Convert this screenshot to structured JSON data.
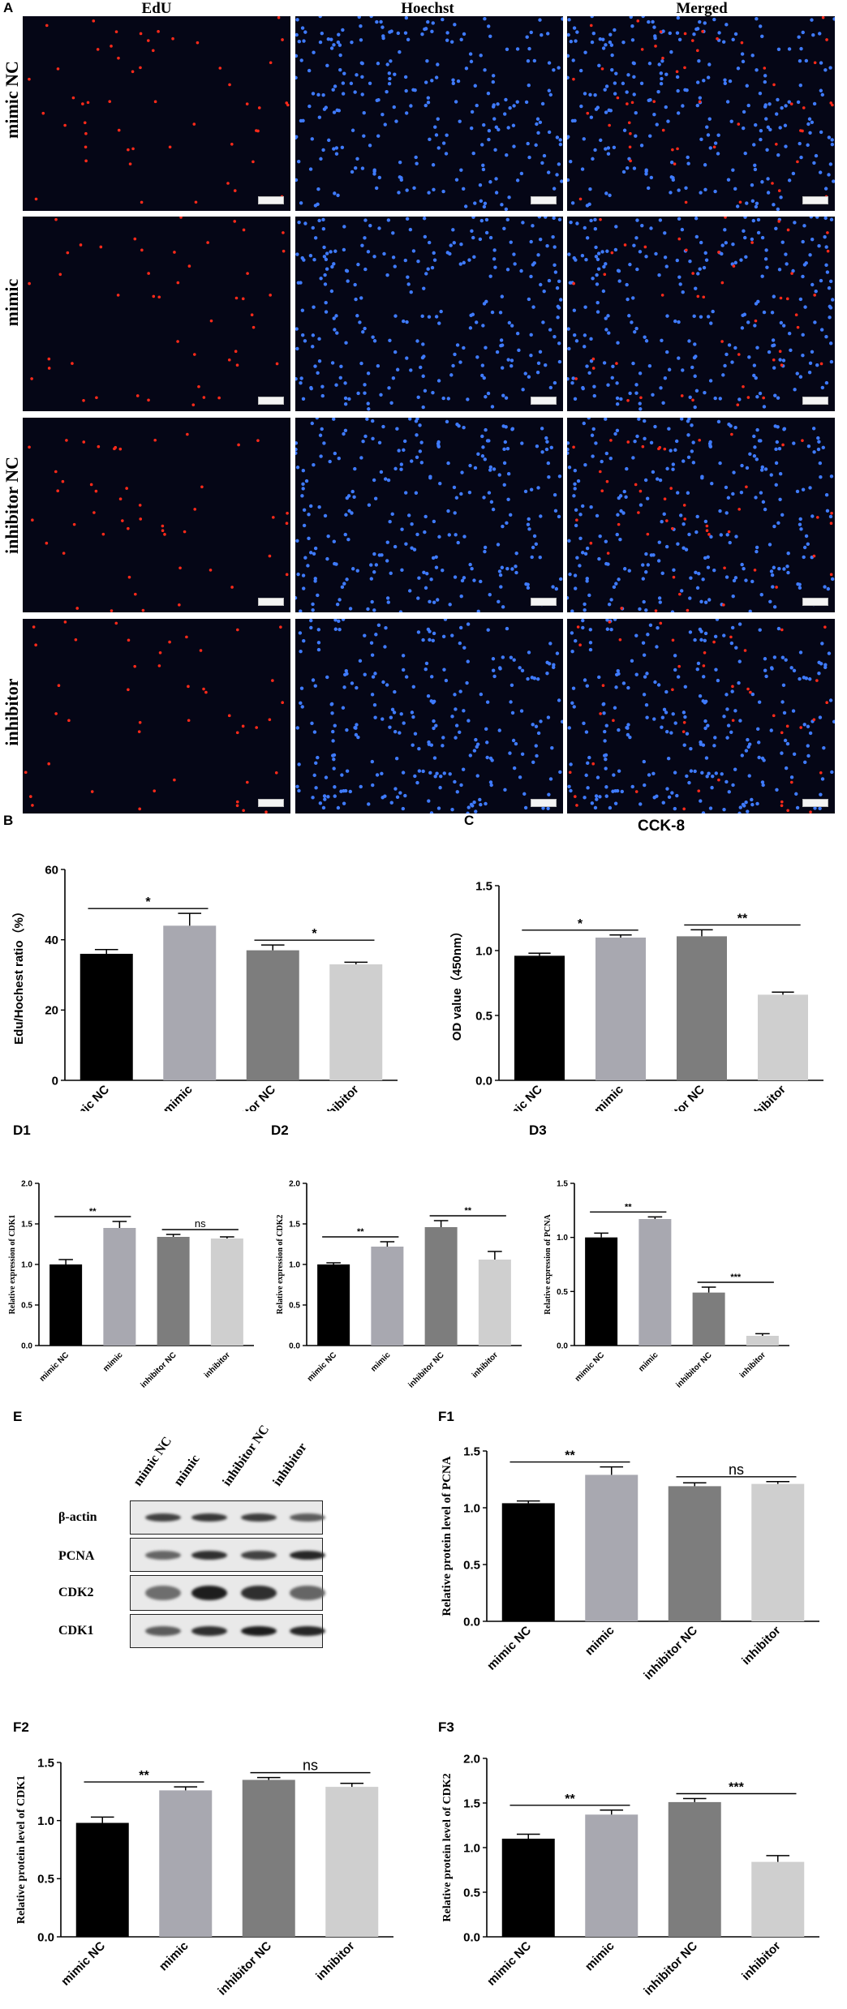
{
  "figure": {
    "panel_labels": {
      "A": "A",
      "B": "B",
      "C": "C",
      "D1": "D1",
      "D2": "D2",
      "D3": "D3",
      "E": "E",
      "F1": "F1",
      "F2": "F2",
      "F3": "F3"
    },
    "A": {
      "columns": [
        "EdU",
        "Hoechst",
        "Merged"
      ],
      "rows": [
        "mimic NC",
        "mimic",
        "inhibitor NC",
        "inhibitor"
      ],
      "colors": {
        "edu": "#ff2a1a",
        "hoechst": "#3f7bff",
        "background": "#050616"
      }
    },
    "E": {
      "lanes": [
        "mimic NC",
        "mimic",
        "inhibitor NC",
        "inhibitor"
      ],
      "rows": [
        "β-actin",
        "PCNA",
        "CDK2",
        "CDK1"
      ]
    }
  },
  "chart_data": [
    {
      "id": "B",
      "type": "bar",
      "title": "",
      "categories": [
        "mimic NC",
        "mimic",
        "inhibitor NC",
        "inhibitor"
      ],
      "values": [
        36,
        44,
        37,
        33
      ],
      "errors": [
        1.2,
        3.5,
        1.5,
        0.6
      ],
      "ylabel": "Edu/Hochest ratio（%）",
      "ylim": [
        0,
        60
      ],
      "yticks": [
        "0",
        "20",
        "40",
        "60"
      ],
      "colors": [
        "#000000",
        "#a8a8b0",
        "#7d7d7d",
        "#cfcfcf"
      ],
      "sig": [
        {
          "from": 0,
          "to": 1,
          "label": "*"
        },
        {
          "from": 2,
          "to": 3,
          "label": "*"
        }
      ]
    },
    {
      "id": "C",
      "type": "bar",
      "title": "CCK-8",
      "categories": [
        "mimic NC",
        "mimic",
        "inhibitor NC",
        "inhibitor"
      ],
      "values": [
        0.96,
        1.1,
        1.11,
        0.66
      ],
      "errors": [
        0.02,
        0.02,
        0.05,
        0.02
      ],
      "ylabel": "OD value（450nm）",
      "ylim": [
        0,
        1.5
      ],
      "yticks": [
        "0.0",
        "0.5",
        "1.0",
        "1.5"
      ],
      "colors": [
        "#000000",
        "#a8a8b0",
        "#7d7d7d",
        "#cfcfcf"
      ],
      "sig": [
        {
          "from": 0,
          "to": 1,
          "label": "*"
        },
        {
          "from": 2,
          "to": 3,
          "label": "**"
        }
      ]
    },
    {
      "id": "D1",
      "type": "bar",
      "title": "",
      "categories": [
        "mimic NC",
        "mimic",
        "inhibitor NC",
        "inhibitor"
      ],
      "values": [
        1.0,
        1.45,
        1.34,
        1.32
      ],
      "errors": [
        0.06,
        0.08,
        0.03,
        0.02
      ],
      "ylabel": "Relative expression of CDK1",
      "ylim": [
        0,
        2.0
      ],
      "yticks": [
        "0.0",
        "0.5",
        "1.0",
        "1.5",
        "2.0"
      ],
      "colors": [
        "#000000",
        "#a8a8b0",
        "#7d7d7d",
        "#cfcfcf"
      ],
      "sig": [
        {
          "from": 0,
          "to": 1,
          "label": "**"
        },
        {
          "from": 2,
          "to": 3,
          "label": "ns"
        }
      ]
    },
    {
      "id": "D2",
      "type": "bar",
      "title": "",
      "categories": [
        "mimic NC",
        "mimic",
        "inhibitor NC",
        "inhibitor"
      ],
      "values": [
        1.0,
        1.22,
        1.46,
        1.06
      ],
      "errors": [
        0.02,
        0.06,
        0.08,
        0.1
      ],
      "ylabel": "Relative expression of CDK2",
      "ylim": [
        0,
        2.0
      ],
      "yticks": [
        "0.0",
        "0.5",
        "1.0",
        "1.5",
        "2.0"
      ],
      "colors": [
        "#000000",
        "#a8a8b0",
        "#7d7d7d",
        "#cfcfcf"
      ],
      "sig": [
        {
          "from": 0,
          "to": 1,
          "label": "**"
        },
        {
          "from": 2,
          "to": 3,
          "label": "**"
        }
      ]
    },
    {
      "id": "D3",
      "type": "bar",
      "title": "",
      "categories": [
        "mimic NC",
        "mimic",
        "inhibitor NC",
        "inhibitor"
      ],
      "values": [
        1.0,
        1.17,
        0.49,
        0.09
      ],
      "errors": [
        0.04,
        0.02,
        0.05,
        0.02
      ],
      "ylabel": "Relative expression of PCNA",
      "ylim": [
        0,
        1.5
      ],
      "yticks": [
        "0.0",
        "0.5",
        "1.0",
        "1.5"
      ],
      "colors": [
        "#000000",
        "#a8a8b0",
        "#7d7d7d",
        "#cfcfcf"
      ],
      "sig": [
        {
          "from": 0,
          "to": 1,
          "label": "**"
        },
        {
          "from": 2,
          "to": 3,
          "label": "***"
        }
      ]
    },
    {
      "id": "F1",
      "type": "bar",
      "title": "",
      "categories": [
        "mimic NC",
        "mimic",
        "inhibitor NC",
        "inhibitor"
      ],
      "values": [
        1.04,
        1.29,
        1.19,
        1.21
      ],
      "errors": [
        0.02,
        0.07,
        0.03,
        0.02
      ],
      "ylabel": "Relative protein level of PCNA",
      "ylim": [
        0,
        1.5
      ],
      "yticks": [
        "0.0",
        "0.5",
        "1.0",
        "1.5"
      ],
      "colors": [
        "#000000",
        "#a8a8b0",
        "#7d7d7d",
        "#cfcfcf"
      ],
      "sig": [
        {
          "from": 0,
          "to": 1,
          "label": "**"
        },
        {
          "from": 2,
          "to": 3,
          "label": "ns"
        }
      ]
    },
    {
      "id": "F2",
      "type": "bar",
      "title": "",
      "categories": [
        "mimic NC",
        "mimic",
        "inhibitor NC",
        "inhibitor"
      ],
      "values": [
        0.98,
        1.26,
        1.35,
        1.29
      ],
      "errors": [
        0.05,
        0.03,
        0.02,
        0.03
      ],
      "ylabel": "Relative protein level of CDK1",
      "ylim": [
        0,
        1.5
      ],
      "yticks": [
        "0.0",
        "0.5",
        "1.0",
        "1.5"
      ],
      "colors": [
        "#000000",
        "#a8a8b0",
        "#7d7d7d",
        "#cfcfcf"
      ],
      "sig": [
        {
          "from": 0,
          "to": 1,
          "label": "**"
        },
        {
          "from": 2,
          "to": 3,
          "label": "ns"
        }
      ]
    },
    {
      "id": "F3",
      "type": "bar",
      "title": "",
      "categories": [
        "mimic NC",
        "mimic",
        "inhibitor NC",
        "inhibitor"
      ],
      "values": [
        1.1,
        1.37,
        1.51,
        0.84
      ],
      "errors": [
        0.05,
        0.05,
        0.04,
        0.07
      ],
      "ylabel": "Relative protein level of CDK2",
      "ylim": [
        0,
        2.0
      ],
      "yticks": [
        "0.0",
        "0.5",
        "1.0",
        "1.5",
        "2.0"
      ],
      "colors": [
        "#000000",
        "#a8a8b0",
        "#7d7d7d",
        "#cfcfcf"
      ],
      "sig": [
        {
          "from": 0,
          "to": 1,
          "label": "**"
        },
        {
          "from": 2,
          "to": 3,
          "label": "***"
        }
      ]
    }
  ]
}
